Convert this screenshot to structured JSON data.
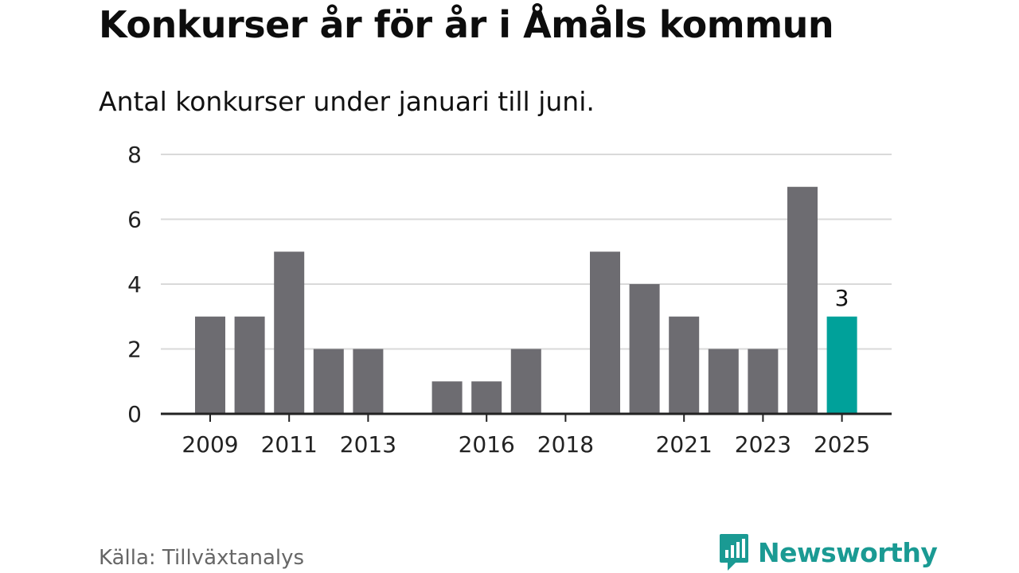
{
  "header": {
    "title": "Konkurser år för år i Åmåls kommun",
    "subtitle": "Antal konkurser under januari till juni."
  },
  "footer": {
    "source": "Källa: Tillväxtanalys",
    "brand": "Newsworthy"
  },
  "colors": {
    "bar": "#6d6c71",
    "highlight": "#00a19a",
    "grid": "#d9d9d9",
    "axis": "#222222",
    "brand": "#1a9a93"
  },
  "chart_data": {
    "type": "bar",
    "categories": [
      "2009",
      "2010",
      "2011",
      "2012",
      "2013",
      "2014",
      "2015",
      "2016",
      "2017",
      "2018",
      "2019",
      "2020",
      "2021",
      "2022",
      "2023",
      "2024",
      "2025"
    ],
    "values": [
      3,
      3,
      5,
      2,
      2,
      0,
      1,
      1,
      2,
      0,
      5,
      4,
      3,
      2,
      2,
      7,
      3
    ],
    "x_tick_labels": [
      "2009",
      "2011",
      "2013",
      "2016",
      "2018",
      "2021",
      "2023",
      "2025"
    ],
    "y_ticks": [
      0,
      2,
      4,
      6,
      8
    ],
    "ylim": [
      0,
      8
    ],
    "highlight_category": "2025",
    "data_labels": [
      {
        "category": "2025",
        "text": "3"
      }
    ],
    "title": "",
    "xlabel": "",
    "ylabel": "",
    "grid": true
  }
}
